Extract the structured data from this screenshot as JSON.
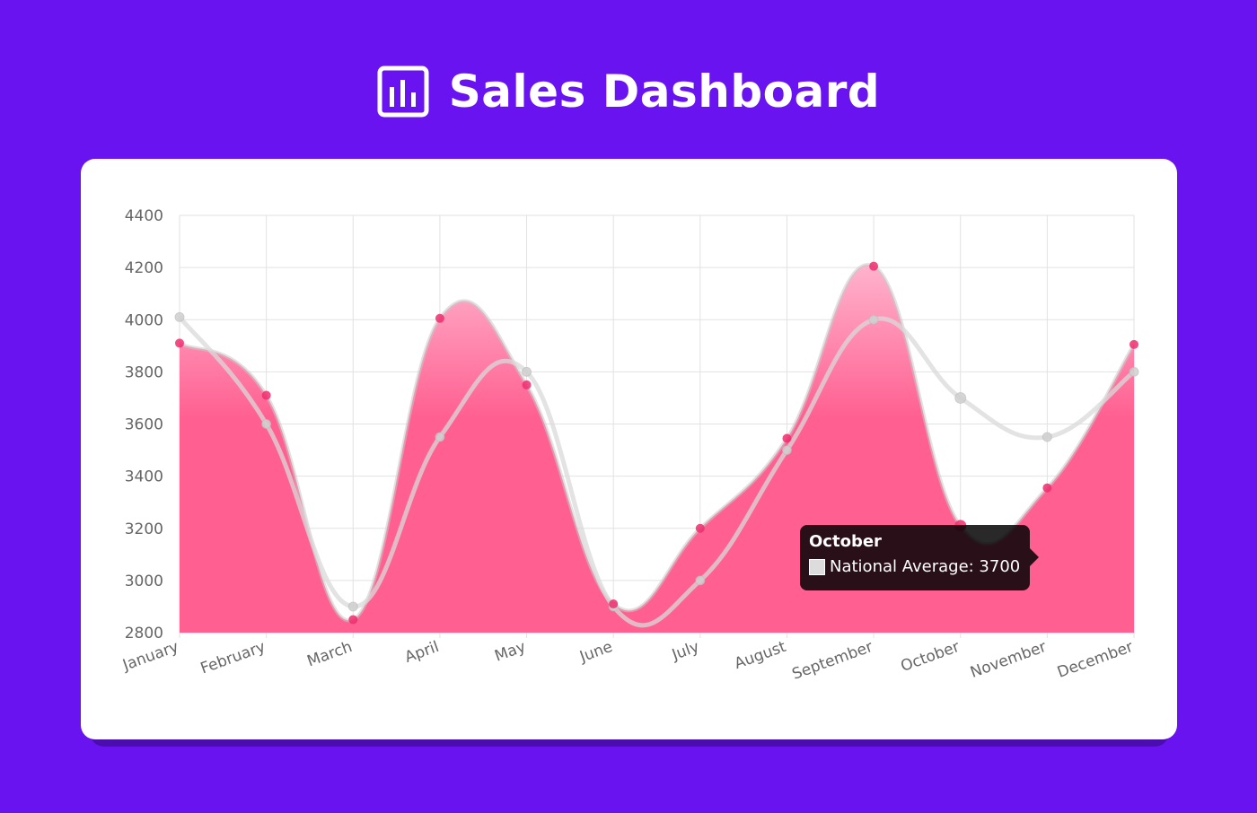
{
  "header": {
    "title": "Sales Dashboard",
    "icon": "bar-chart-icon"
  },
  "colors": {
    "background": "#6813f0",
    "card": "#ffffff",
    "series_fill": "#ff5f91",
    "series_fill_top": "#ffb3cd",
    "series_point": "#ef2d6e",
    "average_line": "#d9d9d9",
    "average_point": "#cfcfcf"
  },
  "chart_data": {
    "type": "area",
    "categories": [
      "January",
      "February",
      "March",
      "April",
      "May",
      "June",
      "July",
      "August",
      "September",
      "October",
      "November",
      "December"
    ],
    "series": [
      {
        "name": "",
        "type": "area",
        "values": [
          3910,
          3710,
          2850,
          4005,
          3750,
          2910,
          3200,
          3545,
          4205,
          3210,
          3355,
          3905
        ]
      },
      {
        "name": "National Average",
        "type": "line",
        "values": [
          4010,
          3600,
          2900,
          3550,
          3800,
          2900,
          3000,
          3500,
          4000,
          3700,
          3550,
          3800
        ]
      }
    ],
    "ylim": [
      2800,
      4400
    ],
    "yticks": [
      2800,
      3000,
      3200,
      3400,
      3600,
      3800,
      4000,
      4200,
      4400
    ],
    "grid": true,
    "curve": "smooth",
    "tooltip": {
      "category": "October",
      "series": "National Average",
      "label": "National Average: 3700"
    }
  }
}
